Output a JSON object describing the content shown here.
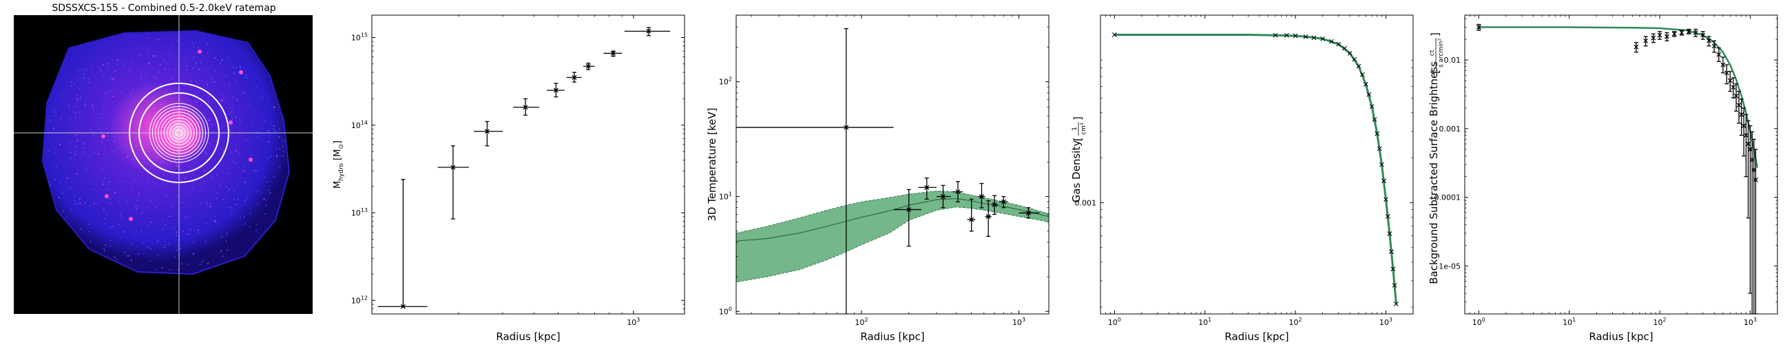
{
  "figure": {
    "panels": [
      "ratemap",
      "mass",
      "temperature",
      "density",
      "surface_brightness"
    ]
  },
  "ratemap": {
    "title": "SDSSXCS-155 - Combined 0.5-2.0keV ratemap",
    "colors": {
      "background": "#000000",
      "emission": "#2a1cc9",
      "hot": "#ff4fd8",
      "core": "#ffd6f0",
      "crosshair": "#cccccc",
      "annulus": "#ffffff"
    },
    "annuli_count": 12
  },
  "chart_data": [
    {
      "type": "scatter",
      "panel": "mass",
      "xlabel": "Radius [kpc]",
      "ylabel": "M",
      "ylabel_sub": "hydro",
      "ylabel_unit": " [M",
      "ylabel_unit_sub": "⊙",
      "ylabel_unit_end": "]",
      "xscale": "log",
      "yscale": "log",
      "xlim": [
        90,
        1600
      ],
      "ylim": [
        700000000000.0,
        1800000000000000.0
      ],
      "xticks": [
        {
          "v": 1000,
          "label": "10",
          "sup": "3"
        }
      ],
      "yticks": [
        {
          "v": 1000000000000.0,
          "label": "10",
          "sup": "12"
        },
        {
          "v": 10000000000000.0,
          "label": "10",
          "sup": "13"
        },
        {
          "v": 100000000000000.0,
          "label": "10",
          "sup": "14"
        },
        {
          "v": 1000000000000000.0,
          "label": "10",
          "sup": "15"
        }
      ],
      "points": [
        {
          "x": 120,
          "y": 850000000000.0,
          "xlo": 95,
          "xhi": 150,
          "ylo": 850000000000.0,
          "yhi": 24000000000000.0
        },
        {
          "x": 190,
          "y": 33000000000000.0,
          "xlo": 165,
          "xhi": 220,
          "ylo": 8500000000000.0,
          "yhi": 58000000000000.0
        },
        {
          "x": 260,
          "y": 85000000000000.0,
          "xlo": 230,
          "xhi": 300,
          "ylo": 58000000000000.0,
          "yhi": 110000000000000.0
        },
        {
          "x": 370,
          "y": 160000000000000.0,
          "xlo": 330,
          "xhi": 420,
          "ylo": 130000000000000.0,
          "yhi": 200000000000000.0
        },
        {
          "x": 490,
          "y": 250000000000000.0,
          "xlo": 450,
          "xhi": 530,
          "ylo": 210000000000000.0,
          "yhi": 300000000000000.0
        },
        {
          "x": 580,
          "y": 350000000000000.0,
          "xlo": 540,
          "xhi": 620,
          "ylo": 310000000000000.0,
          "yhi": 400000000000000.0
        },
        {
          "x": 660,
          "y": 470000000000000.0,
          "xlo": 630,
          "xhi": 700,
          "ylo": 430000000000000.0,
          "yhi": 510000000000000.0
        },
        {
          "x": 830,
          "y": 660000000000000.0,
          "xlo": 760,
          "xhi": 900,
          "ylo": 610000000000000.0,
          "yhi": 700000000000000.0
        },
        {
          "x": 1150,
          "y": 1180000000000000.0,
          "xlo": 920,
          "xhi": 1400,
          "ylo": 1050000000000000.0,
          "yhi": 1300000000000000.0
        }
      ]
    },
    {
      "type": "scatter",
      "panel": "temperature",
      "xlabel": "Radius [kpc]",
      "ylabel": "3D Temperature [keV]",
      "xscale": "log",
      "yscale": "log",
      "xlim": [
        16,
        1550
      ],
      "ylim": [
        0.95,
        380
      ],
      "xticks": [
        {
          "v": 100,
          "label": "10",
          "sup": "2"
        },
        {
          "v": 1000,
          "label": "10",
          "sup": "3"
        }
      ],
      "yticks": [
        {
          "v": 1,
          "label": "10",
          "sup": "0"
        },
        {
          "v": 10,
          "label": "10",
          "sup": "1"
        },
        {
          "v": 100,
          "label": "10",
          "sup": "2"
        }
      ],
      "model": {
        "color": "#5aaa75",
        "x": [
          16,
          25,
          40,
          60,
          80,
          100,
          150,
          200,
          300,
          400,
          500,
          600,
          800,
          1000,
          1300,
          1550
        ],
        "upper": [
          4.8,
          5.5,
          6.5,
          7.6,
          8.4,
          9.0,
          9.8,
          10.5,
          11.2,
          11.0,
          10.3,
          9.8,
          9.0,
          8.4,
          7.6,
          7.1
        ],
        "median": [
          4.1,
          4.3,
          4.8,
          5.5,
          6.1,
          6.6,
          7.5,
          8.4,
          9.4,
          9.6,
          9.2,
          8.7,
          8.2,
          7.7,
          7.1,
          6.7
        ],
        "lower": [
          1.8,
          2.0,
          2.3,
          2.8,
          3.3,
          3.8,
          4.8,
          6.2,
          7.6,
          8.1,
          7.9,
          7.6,
          7.1,
          6.7,
          6.3,
          6.0
        ]
      },
      "points": [
        {
          "x": 80,
          "y": 40,
          "xlo": 16,
          "xhi": 160,
          "ylo": 0.95,
          "yhi": 290
        },
        {
          "x": 200,
          "y": 7.7,
          "xlo": 160,
          "xhi": 240,
          "ylo": 3.7,
          "yhi": 11.5
        },
        {
          "x": 260,
          "y": 12,
          "xlo": 230,
          "xhi": 300,
          "ylo": 9.5,
          "yhi": 14.5
        },
        {
          "x": 330,
          "y": 10,
          "xlo": 300,
          "xhi": 370,
          "ylo": 8.0,
          "yhi": 12.5
        },
        {
          "x": 410,
          "y": 11,
          "xlo": 380,
          "xhi": 440,
          "ylo": 9.0,
          "yhi": 13.5
        },
        {
          "x": 500,
          "y": 6.3,
          "xlo": 470,
          "xhi": 530,
          "ylo": 5.0,
          "yhi": 9.5
        },
        {
          "x": 580,
          "y": 10,
          "xlo": 550,
          "xhi": 610,
          "ylo": 8.0,
          "yhi": 13
        },
        {
          "x": 640,
          "y": 6.7,
          "xlo": 610,
          "xhi": 670,
          "ylo": 4.5,
          "yhi": 9.2
        },
        {
          "x": 700,
          "y": 8.5,
          "xlo": 670,
          "xhi": 740,
          "ylo": 7.0,
          "yhi": 10.2
        },
        {
          "x": 800,
          "y": 9.0,
          "xlo": 750,
          "xhi": 850,
          "ylo": 8.0,
          "yhi": 10.0
        },
        {
          "x": 1150,
          "y": 7.2,
          "xlo": 1000,
          "xhi": 1350,
          "ylo": 6.5,
          "yhi": 8.0
        }
      ]
    },
    {
      "type": "line",
      "panel": "density",
      "xlabel": "Radius [kpc]",
      "ylabel": "Gas Density ",
      "ylabel_frac_num": "1",
      "ylabel_frac_den": "cm",
      "ylabel_frac_den_sup": "3",
      "xscale": "log",
      "yscale": "log",
      "xlim": [
        0.7,
        2000
      ],
      "ylim": [
        0.00018,
        0.018
      ],
      "xticks": [
        {
          "v": 1,
          "label": "10",
          "sup": "0"
        },
        {
          "v": 10,
          "label": "10",
          "sup": "1"
        },
        {
          "v": 100,
          "label": "10",
          "sup": "2"
        },
        {
          "v": 1000,
          "label": "10",
          "sup": "3"
        }
      ],
      "yticks": [
        {
          "v": 0.001,
          "label": "0.001"
        }
      ],
      "line_color": "#2d8a57",
      "x": [
        1,
        10,
        30,
        60,
        100,
        150,
        200,
        300,
        400,
        500,
        600,
        700,
        800,
        900,
        1000,
        1100,
        1200,
        1300
      ],
      "y": [
        0.0133,
        0.0133,
        0.0133,
        0.0132,
        0.0131,
        0.0128,
        0.0125,
        0.0115,
        0.01,
        0.0082,
        0.0062,
        0.0044,
        0.0029,
        0.0018,
        0.00105,
        0.00062,
        0.00036,
        0.00021
      ],
      "markers": {
        "x": [
          1,
          60,
          80,
          100,
          130,
          160,
          200,
          250,
          300,
          350,
          400,
          450,
          500,
          550,
          600,
          650,
          700,
          750,
          800,
          850,
          900,
          950,
          1000,
          1050,
          1100,
          1150,
          1200,
          1250,
          1300
        ],
        "y": [
          0.0133,
          0.0132,
          0.0132,
          0.0131,
          0.0129,
          0.0127,
          0.0125,
          0.012,
          0.0115,
          0.0108,
          0.01,
          0.0091,
          0.0082,
          0.0072,
          0.0062,
          0.0053,
          0.0044,
          0.0036,
          0.0029,
          0.0023,
          0.0018,
          0.0014,
          0.00105,
          0.00081,
          0.00062,
          0.00047,
          0.00036,
          0.00028,
          0.00021
        ]
      }
    },
    {
      "type": "scatter",
      "panel": "surface_brightness",
      "xlabel": "Radius [kpc]",
      "ylabel": "Background Subtracted Surface Brightness ",
      "ylabel_frac_num": "ct",
      "ylabel_frac_den": "s arcmin",
      "ylabel_frac_den_sup": "2",
      "xscale": "log",
      "yscale": "log",
      "xlim": [
        0.7,
        2000
      ],
      "ylim": [
        2e-06,
        0.045
      ],
      "xticks": [
        {
          "v": 1,
          "label": "10",
          "sup": "0"
        },
        {
          "v": 10,
          "label": "10",
          "sup": "1"
        },
        {
          "v": 100,
          "label": "10",
          "sup": "2"
        },
        {
          "v": 1000,
          "label": "10",
          "sup": "3"
        }
      ],
      "yticks": [
        {
          "v": 1e-05,
          "label": "1e-05"
        },
        {
          "v": 0.0001,
          "label": "0.0001"
        },
        {
          "v": 0.001,
          "label": "0.001"
        },
        {
          "v": 0.01,
          "label": "0.01"
        }
      ],
      "line_color": "#2d8a57",
      "model_x": [
        1,
        10,
        50,
        100,
        200,
        300,
        400,
        500,
        600,
        700,
        800,
        900,
        1000,
        1100,
        1200
      ],
      "model_y": [
        0.03,
        0.03,
        0.0295,
        0.029,
        0.027,
        0.023,
        0.018,
        0.013,
        0.0085,
        0.0052,
        0.003,
        0.0017,
        0.00092,
        0.0005,
        0.00027
      ],
      "points": [
        {
          "x": 1,
          "y": 0.03,
          "ylo": 0.027,
          "yhi": 0.033
        },
        {
          "x": 55,
          "y": 0.0155,
          "ylo": 0.013,
          "yhi": 0.018
        },
        {
          "x": 70,
          "y": 0.019,
          "ylo": 0.016,
          "yhi": 0.022
        },
        {
          "x": 85,
          "y": 0.021,
          "ylo": 0.018,
          "yhi": 0.024
        },
        {
          "x": 100,
          "y": 0.023,
          "ylo": 0.02,
          "yhi": 0.026
        },
        {
          "x": 120,
          "y": 0.022,
          "ylo": 0.019,
          "yhi": 0.025
        },
        {
          "x": 145,
          "y": 0.024,
          "ylo": 0.022,
          "yhi": 0.026
        },
        {
          "x": 175,
          "y": 0.025,
          "ylo": 0.023,
          "yhi": 0.027
        },
        {
          "x": 210,
          "y": 0.026,
          "ylo": 0.024,
          "yhi": 0.028
        },
        {
          "x": 250,
          "y": 0.025,
          "ylo": 0.022,
          "yhi": 0.028
        },
        {
          "x": 300,
          "y": 0.023,
          "ylo": 0.02,
          "yhi": 0.026
        },
        {
          "x": 350,
          "y": 0.019,
          "ylo": 0.016,
          "yhi": 0.022
        },
        {
          "x": 400,
          "y": 0.016,
          "ylo": 0.013,
          "yhi": 0.019
        },
        {
          "x": 450,
          "y": 0.012,
          "ylo": 0.0095,
          "yhi": 0.015
        },
        {
          "x": 500,
          "y": 0.0085,
          "ylo": 0.0065,
          "yhi": 0.011
        },
        {
          "x": 550,
          "y": 0.0065,
          "ylo": 0.0045,
          "yhi": 0.0085
        },
        {
          "x": 600,
          "y": 0.005,
          "ylo": 0.0035,
          "yhi": 0.0068
        },
        {
          "x": 650,
          "y": 0.004,
          "ylo": 0.0028,
          "yhi": 0.0055
        },
        {
          "x": 700,
          "y": 0.003,
          "ylo": 0.0018,
          "yhi": 0.0045
        },
        {
          "x": 750,
          "y": 0.0022,
          "ylo": 0.0012,
          "yhi": 0.0035
        },
        {
          "x": 800,
          "y": 0.0016,
          "ylo": 0.0008,
          "yhi": 0.0027
        },
        {
          "x": 850,
          "y": 0.0011,
          "ylo": 0.0004,
          "yhi": 0.002
        },
        {
          "x": 900,
          "y": 0.0008,
          "ylo": 0.0002,
          "yhi": 0.0016
        },
        {
          "x": 950,
          "y": 0.0006,
          "ylo": 5e-05,
          "yhi": 0.0013
        },
        {
          "x": 1000,
          "y": 0.0005,
          "ylo": 4e-06,
          "yhi": 0.0011
        },
        {
          "x": 1050,
          "y": 0.00035,
          "ylo": 2e-06,
          "yhi": 0.0009
        },
        {
          "x": 1100,
          "y": 0.00025,
          "ylo": 2e-06,
          "yhi": 0.0007
        },
        {
          "x": 1150,
          "y": 0.00018,
          "ylo": 2e-06,
          "yhi": 0.0005
        }
      ]
    }
  ]
}
